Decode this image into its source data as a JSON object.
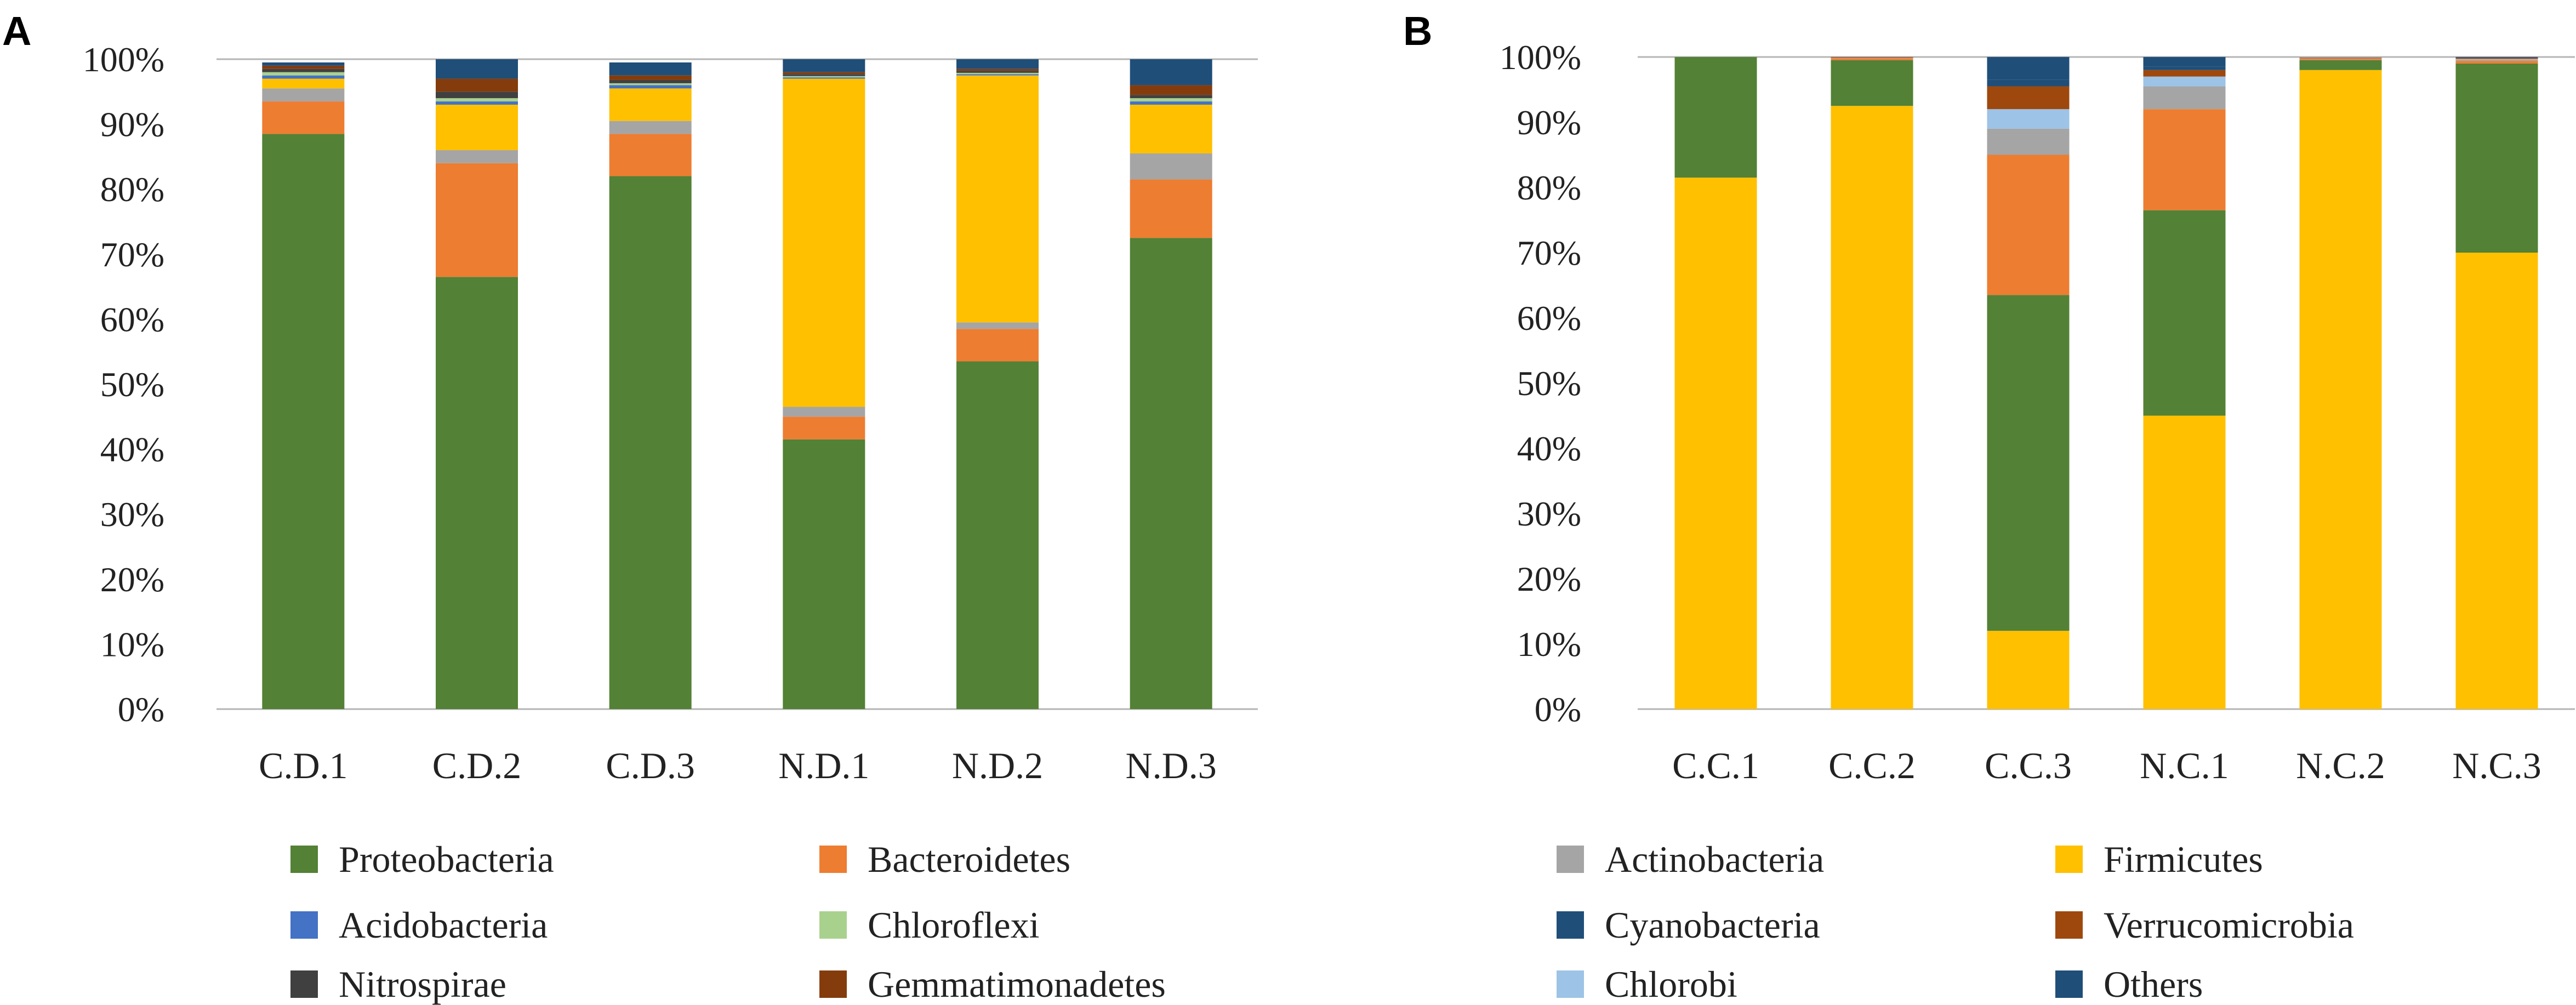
{
  "colors": {
    "Proteobacteria": "#538135",
    "Bacteroidetes": "#ED7D31",
    "Acidobacteria": "#4472C4",
    "Chloroflexi": "#A9D18E",
    "Nitrospirae": "#404040",
    "Gemmatimonadetes": "#843C0C",
    "Actinobacteria": "#A5A5A5",
    "Firmicutes": "#FFC000",
    "Cyanobacteria": "#1F4E79",
    "Verrucomicrobia": "#9E480E",
    "Chlorobi": "#9DC3E6",
    "Others": "#1F4E79"
  },
  "chart_data": [
    {
      "type": "bar",
      "stacked": true,
      "panel_label": "A",
      "categories": [
        "C.D.1",
        "C.D.2",
        "C.D.3",
        "N.D.1",
        "N.D.2",
        "N.D.3"
      ],
      "ylim": [
        0,
        100
      ],
      "yticks": [
        "0%",
        "10%",
        "20%",
        "30%",
        "40%",
        "50%",
        "60%",
        "70%",
        "80%",
        "90%",
        "100%"
      ],
      "series": [
        {
          "name": "Proteobacteria",
          "values": [
            88.5,
            66.5,
            82.0,
            41.5,
            53.5,
            72.5
          ]
        },
        {
          "name": "Bacteroidetes",
          "values": [
            5.0,
            17.5,
            6.5,
            3.5,
            5.0,
            9.0
          ]
        },
        {
          "name": "Actinobacteria",
          "values": [
            2.0,
            2.0,
            2.0,
            1.5,
            1.0,
            4.0
          ]
        },
        {
          "name": "Firmicutes",
          "values": [
            1.5,
            7.0,
            5.0,
            50.5,
            38.0,
            7.5
          ]
        },
        {
          "name": "Acidobacteria",
          "values": [
            0.5,
            0.5,
            0.5,
            0.2,
            0.2,
            0.5
          ]
        },
        {
          "name": "Chloroflexi",
          "values": [
            0.5,
            0.5,
            0.3,
            0.2,
            0.2,
            0.5
          ]
        },
        {
          "name": "Nitrospirae",
          "values": [
            0.5,
            1.0,
            0.5,
            0.3,
            0.3,
            0.5
          ]
        },
        {
          "name": "Gemmatimonadetes",
          "values": [
            0.5,
            2.0,
            0.7,
            0.3,
            0.3,
            1.5
          ]
        },
        {
          "name": "Others",
          "values": [
            0.5,
            3.0,
            2.0,
            2.0,
            1.5,
            4.0
          ]
        }
      ],
      "legend": [
        "Proteobacteria",
        "Bacteroidetes",
        "Acidobacteria",
        "Chloroflexi",
        "Nitrospirae",
        "Gemmatimonadetes"
      ]
    },
    {
      "type": "bar",
      "stacked": true,
      "panel_label": "B",
      "categories": [
        "C.C.1",
        "C.C.2",
        "C.C.3",
        "N.C.1",
        "N.C.2",
        "N.C.3"
      ],
      "ylim": [
        0,
        100
      ],
      "yticks": [
        "0%",
        "10%",
        "20%",
        "30%",
        "40%",
        "50%",
        "60%",
        "70%",
        "80%",
        "90%",
        "100%"
      ],
      "series": [
        {
          "name": "Firmicutes",
          "values": [
            81.5,
            92.5,
            12.0,
            45.0,
            98.0,
            70.0
          ]
        },
        {
          "name": "Proteobacteria",
          "values": [
            18.5,
            7.0,
            51.5,
            31.5,
            1.5,
            29.0
          ]
        },
        {
          "name": "Bacteroidetes",
          "values": [
            0.0,
            0.3,
            21.5,
            15.5,
            0.2,
            0.4
          ]
        },
        {
          "name": "Actinobacteria",
          "values": [
            0.0,
            0.1,
            4.0,
            3.5,
            0.1,
            0.2
          ]
        },
        {
          "name": "Chlorobi",
          "values": [
            0.0,
            0.0,
            3.0,
            1.5,
            0.0,
            0.1
          ]
        },
        {
          "name": "Verrucomicrobia",
          "values": [
            0.0,
            0.1,
            3.5,
            1.0,
            0.1,
            0.2
          ]
        },
        {
          "name": "Cyanobacteria",
          "values": [
            0.0,
            0.0,
            1.0,
            0.5,
            0.0,
            0.0
          ]
        },
        {
          "name": "Others",
          "values": [
            0.0,
            0.0,
            3.5,
            1.5,
            0.0,
            0.1
          ]
        }
      ],
      "legend": [
        "Actinobacteria",
        "Firmicutes",
        "Cyanobacteria",
        "Verrucomicrobia",
        "Chlorobi",
        "Others"
      ]
    }
  ]
}
